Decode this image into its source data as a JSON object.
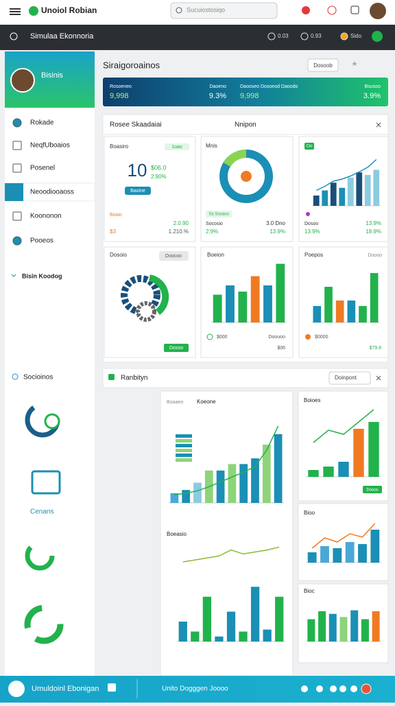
{
  "header": {
    "app_name": "Unoiol Robian",
    "search": "Sucuiostosiqo"
  },
  "subheader": {
    "title": "Simulaa Ekonnoria",
    "items": [
      "0.03",
      "0.93",
      "Sido"
    ]
  },
  "sidebar": {
    "profile": "Bisinis",
    "menu": [
      "Rokade",
      "NeqfUboaios",
      "Posenel",
      "Neoodiooaoss",
      "Koononon",
      "Pooeos"
    ],
    "section": "Bisin Koodog",
    "search": "Socioinos",
    "widget": "Cenans"
  },
  "main": {
    "title": "Siraigoroainos",
    "button": "Dosoob",
    "banner": [
      {
        "label": "Rosoeneo",
        "value": "9,998"
      },
      {
        "label": "Daoeno",
        "value": "9.3%"
      },
      {
        "label": "Daooseo Dosoeod Daoodo",
        "value": "9,998"
      },
      {
        "label": "Bsusoo",
        "value": "3.9%"
      }
    ]
  },
  "panel1": {
    "title": "Rosee Skaadaiai",
    "tab": "Nnipon",
    "cards": [
      [
        "Boasiro",
        "1oao",
        "10",
        "$06.0",
        "2.90%",
        "Baoine",
        "Boaio",
        "2.0.90",
        "$3",
        "1.210.%"
      ],
      [
        "Mnis",
        "Sa Sosaoo",
        "Socosio",
        "3.0 Dno",
        "2.9%",
        "13.9%"
      ],
      [
        "Cio",
        "Dosoo",
        "13.9%",
        "13.9%",
        "18.9%"
      ],
      [
        "Dosoio",
        "Doocoo",
        "Dosoo"
      ],
      [
        "Boeion",
        "$000",
        "Doouoo",
        "$06"
      ],
      [
        "Poepos",
        "Doooo",
        "$0000",
        "$79.8"
      ]
    ]
  },
  "panel2": {
    "title": "Ranbityn",
    "button": "Doinpont",
    "labels": [
      "Boaaeo",
      "Koeone",
      "Boioes",
      "Dooos",
      "Bioo",
      "Boeasio",
      "Bioc"
    ]
  },
  "footer": {
    "title": "Umuldoinl Ebonigan",
    "center": "Unito Dogggen Joooo"
  },
  "charts": [
    {
      "ylim": [
        0,
        100
      ],
      "bars": [
        20,
        30,
        45,
        35,
        55,
        65,
        60,
        70
      ],
      "bar_colors": [
        "#1a4f7a",
        "#1b8fb5",
        "#1a4f7a",
        "#1b8fb5",
        "#8ccbe0",
        "#1a4f7a",
        "#8ccbe0",
        "#8ccbe0"
      ],
      "line": [
        30,
        38,
        48,
        52,
        58,
        66,
        75,
        90
      ],
      "line_color": "#1b8fb5"
    },
    {
      "ylim": [
        0,
        100
      ],
      "bars": [
        45,
        60,
        50,
        75,
        60,
        95
      ],
      "bar_colors": [
        "#22b24c",
        "#1b8fb5",
        "#22b24c",
        "#f07a22",
        "#1b8fb5",
        "#22b24c"
      ]
    },
    {
      "ylim": [
        0,
        100
      ],
      "bars": [
        30,
        65,
        40,
        40,
        30,
        90
      ],
      "bar_colors": [
        "#1b8fb5",
        "#22b24c",
        "#f07a22",
        "#1b8fb5",
        "#22b24c",
        "#22b24c"
      ]
    },
    {
      "ylim": [
        0,
        100
      ],
      "bars": [
        12,
        16,
        25,
        40,
        40,
        48,
        48,
        55,
        72,
        85
      ],
      "bar_colors": [
        "#4aa8d8",
        "#1b8fb5",
        "#8ccbe0",
        "#8ed47a",
        "#1b8fb5",
        "#8ed47a",
        "#1b8fb5",
        "#1b8fb5",
        "#8ed47a",
        "#1b8fb5"
      ],
      "line": [
        10,
        12,
        15,
        20,
        26,
        32,
        38,
        45,
        65,
        95
      ],
      "line_color": "#22b24c"
    },
    {
      "ylim": [
        0,
        100
      ],
      "bars": [
        10,
        15,
        22,
        70,
        80
      ],
      "bar_colors": [
        "#22b24c",
        "#22b24c",
        "#1b8fb5",
        "#f07a22",
        "#22b24c"
      ],
      "line": [
        50,
        68,
        62,
        80,
        98
      ],
      "line_color": "#22b24c"
    },
    {
      "ylim": [
        0,
        100
      ],
      "bars": [
        25,
        40,
        35,
        50,
        45,
        80
      ],
      "bar_colors": [
        "#1b8fb5",
        "#4aa8d8",
        "#1b8fb5",
        "#4aa8d8",
        "#1b8fb5",
        "#1b8fb5"
      ],
      "line": [
        35,
        60,
        50,
        70,
        62,
        95
      ],
      "line_color": "#f07a22"
    },
    {
      "ylim": [
        0,
        100
      ],
      "bars": [
        20,
        10,
        45,
        5,
        30,
        10,
        55,
        12,
        45
      ],
      "bar_colors": [
        "#1b8fb5",
        "#22b24c",
        "#22b24c",
        "#1b8fb5",
        "#1b8fb5",
        "#22b24c",
        "#1b8fb5",
        "#1b8fb5",
        "#22b24c"
      ],
      "line": [
        80,
        82,
        84,
        86,
        92,
        88,
        90,
        92,
        95
      ],
      "line_color": "#8bb836"
    },
    {
      "ylim": [
        0,
        100
      ],
      "bars": [
        50,
        68,
        62,
        55,
        70,
        50,
        68
      ],
      "bar_colors": [
        "#22b24c",
        "#22b24c",
        "#1b8fb5",
        "#8ed47a",
        "#1b8fb5",
        "#22b24c",
        "#f07a22"
      ]
    }
  ]
}
